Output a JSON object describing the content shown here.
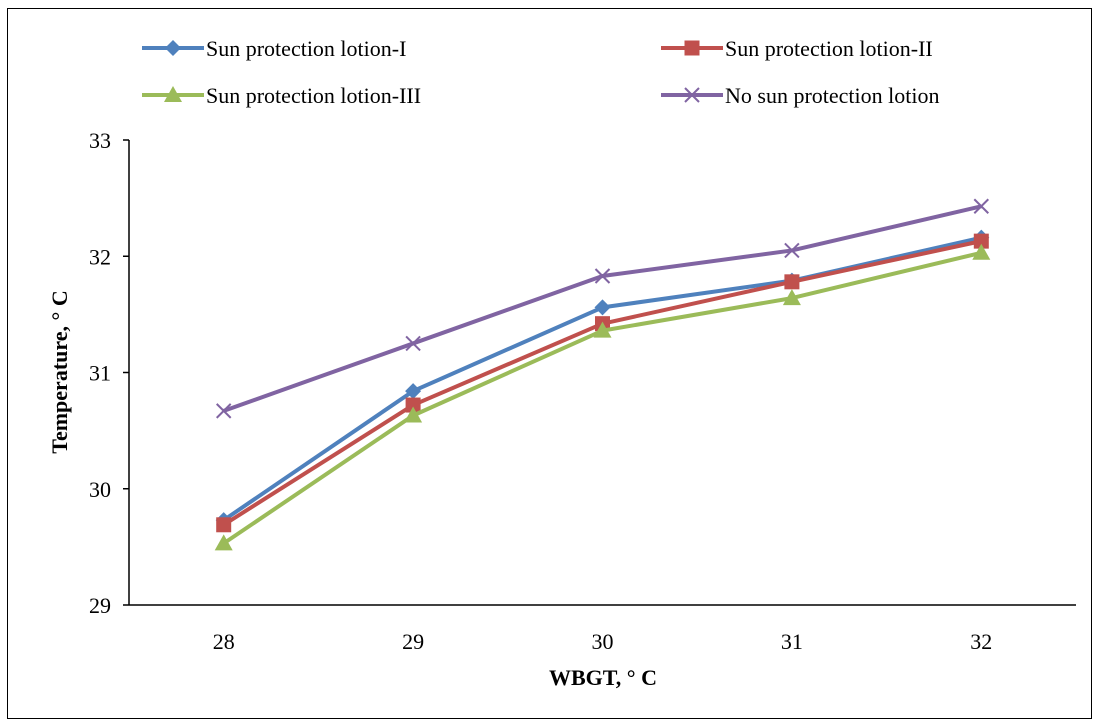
{
  "chart_data": {
    "type": "line",
    "title": "",
    "xlabel": "WBGT, ° C",
    "ylabel": "Temperature, ° C",
    "x": [
      28,
      29,
      30,
      31,
      32
    ],
    "categories": [
      "28",
      "29",
      "30",
      "31",
      "32"
    ],
    "ylim": [
      29,
      33
    ],
    "yticks": [
      "29",
      "30",
      "31",
      "32",
      "33"
    ],
    "grid": false,
    "legend_position": "top",
    "series": [
      {
        "name": "Sun protection lotion-I",
        "color": "#4F81BD",
        "marker": "diamond",
        "values": [
          29.73,
          30.84,
          31.56,
          31.79,
          32.16
        ]
      },
      {
        "name": "Sun protection lotion-II",
        "color": "#C0504D",
        "marker": "square",
        "values": [
          29.69,
          30.72,
          31.42,
          31.78,
          32.13
        ]
      },
      {
        "name": "Sun protection lotion-III",
        "color": "#9BBB59",
        "marker": "triangle",
        "values": [
          29.53,
          30.63,
          31.36,
          31.64,
          32.03
        ]
      },
      {
        "name": "No sun protection lotion",
        "color": "#8064A2",
        "marker": "x",
        "values": [
          30.67,
          31.25,
          31.83,
          32.05,
          32.43
        ]
      }
    ]
  }
}
